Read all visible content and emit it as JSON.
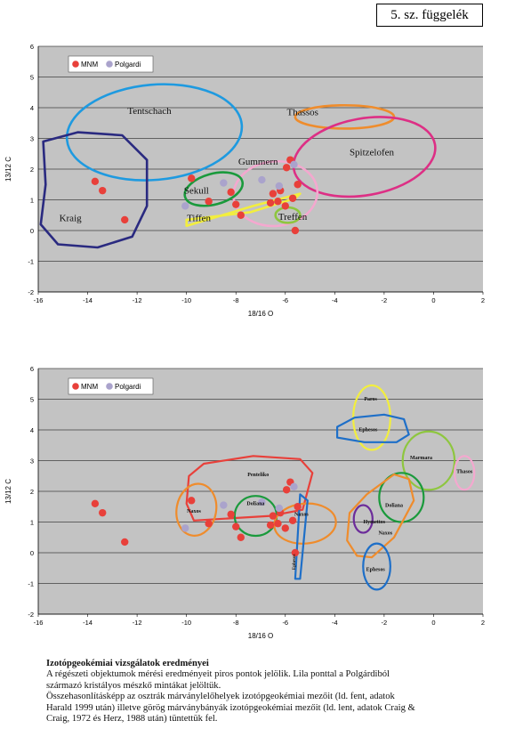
{
  "appendix_label": "5. sz. függelék",
  "caption": {
    "title": "Izotópgeokémiai vizsgálatok eredményei",
    "body": "A régészeti objektumok mérési eredményeit piros pontok jelölik. Lila ponttal a Polgárdiból\nszármazó kristályos mészkő mintákat jelöltük.\nÖsszehasonlításképp az osztrák márványlelőhelyek izotópgeokémiai mezőit (ld. fent, adatok\nHarald 1999 után) illetve görög márványbányák izotópgeokémiai mezőit (ld. lent, adatok Craig &\nCraig, 1972 és Herz, 1988 után) tüntettük fel."
  },
  "colors": {
    "mnm": "#e8403a",
    "polgardi": "#aaa3cc",
    "plot_bg": "#c3c3c3",
    "grid": "#000000"
  },
  "chart_data": [
    {
      "type": "scatter",
      "xlabel": "18/16 O",
      "ylabel": "13/12 C",
      "xlim": [
        -16,
        2
      ],
      "ylim": [
        -2,
        6
      ],
      "xticks": [
        -16,
        -14,
        -12,
        -10,
        -8,
        -6,
        -4,
        -2,
        0,
        2
      ],
      "yticks": [
        -2,
        -1,
        0,
        1,
        2,
        3,
        4,
        5,
        6
      ],
      "grid": "horizontal",
      "legend": {
        "placement": "top-left",
        "entries": [
          "MNM",
          "Polgardi"
        ]
      },
      "series": [
        {
          "name": "MNM",
          "color": "#e8403a",
          "points": [
            [
              -13.7,
              1.6
            ],
            [
              -13.4,
              1.3
            ],
            [
              -12.5,
              0.35
            ],
            [
              -9.8,
              1.7
            ],
            [
              -9.1,
              0.95
            ],
            [
              -8.2,
              1.25
            ],
            [
              -8,
              0.85
            ],
            [
              -7.8,
              0.5
            ],
            [
              -6.6,
              0.9
            ],
            [
              -6.5,
              1.2
            ],
            [
              -6.3,
              0.95
            ],
            [
              -6.2,
              1.3
            ],
            [
              -6,
              0.8
            ],
            [
              -5.95,
              2.05
            ],
            [
              -5.8,
              2.3
            ],
            [
              -5.7,
              1.05
            ],
            [
              -5.5,
              1.5
            ],
            [
              -5.6,
              0
            ]
          ]
        },
        {
          "name": "Polgardi",
          "color": "#aaa3cc",
          "points": [
            [
              -10.05,
              0.8
            ],
            [
              -8.5,
              1.55
            ],
            [
              -6.95,
              1.65
            ],
            [
              -6.25,
              1.45
            ],
            [
              -5.65,
              2.15
            ]
          ]
        }
      ],
      "regions": [
        {
          "label": "Tentschach",
          "color": "#1e9ae0",
          "labelPos": [
            -11.5,
            3.8
          ],
          "labelSize": 11
        },
        {
          "label": "Kraig",
          "color": "#2a2a80",
          "labelPos": [
            -14.7,
            0.3
          ],
          "labelSize": 11
        },
        {
          "label": "Thassos",
          "color": "#ef8c2c",
          "labelPos": [
            -5.3,
            3.75
          ],
          "labelSize": 11
        },
        {
          "label": "Spitzelofen",
          "color": "#dd2f85",
          "labelPos": [
            -2.5,
            2.45
          ],
          "labelSize": 11
        },
        {
          "label": "Gummern",
          "color": "#f4a8cf",
          "labelPos": [
            -7.1,
            2.15
          ],
          "labelSize": 11
        },
        {
          "label": "Sekull",
          "color": "#1a9a3c",
          "labelPos": [
            -9.6,
            1.2
          ],
          "labelSize": 11
        },
        {
          "label": "Tiffen",
          "color": "#f2ee3e",
          "labelPos": [
            -9.5,
            0.3
          ],
          "labelSize": 11
        },
        {
          "label": "Treffen",
          "color": "#8ec63f",
          "labelPos": [
            -5.7,
            0.35
          ],
          "labelSize": 11
        }
      ]
    },
    {
      "type": "scatter",
      "xlabel": "18/16 O",
      "ylabel": "13/12 C",
      "xlim": [
        -16,
        2
      ],
      "ylim": [
        -2,
        6
      ],
      "xticks": [
        -16,
        -14,
        -12,
        -10,
        -8,
        -6,
        -4,
        -2,
        0,
        2
      ],
      "yticks": [
        -2,
        -1,
        0,
        1,
        2,
        3,
        4,
        5,
        6
      ],
      "grid": "horizontal",
      "legend": {
        "placement": "top-left",
        "entries": [
          "MNM",
          "Polgardi"
        ]
      },
      "series": [
        {
          "name": "MNM",
          "color": "#e8403a",
          "points": [
            [
              -13.7,
              1.6
            ],
            [
              -13.4,
              1.3
            ],
            [
              -12.5,
              0.35
            ],
            [
              -9.8,
              1.7
            ],
            [
              -9.1,
              0.95
            ],
            [
              -8.2,
              1.25
            ],
            [
              -8,
              0.85
            ],
            [
              -7.8,
              0.5
            ],
            [
              -6.6,
              0.9
            ],
            [
              -6.5,
              1.2
            ],
            [
              -6.3,
              0.95
            ],
            [
              -6.2,
              1.3
            ],
            [
              -6,
              0.8
            ],
            [
              -5.95,
              2.05
            ],
            [
              -5.8,
              2.3
            ],
            [
              -5.7,
              1.05
            ],
            [
              -5.5,
              1.5
            ],
            [
              -5.6,
              0
            ]
          ]
        },
        {
          "name": "Polgardi",
          "color": "#aaa3cc",
          "points": [
            [
              -10.05,
              0.8
            ],
            [
              -8.5,
              1.55
            ],
            [
              -6.95,
              1.65
            ],
            [
              -6.25,
              1.45
            ],
            [
              -5.65,
              2.15
            ]
          ]
        }
      ],
      "regions": [
        {
          "label": "Paros",
          "color": "#f2ee3e",
          "labelPos": [
            -2.55,
            4.95
          ],
          "labelSize": 6
        },
        {
          "label": "Ephesos",
          "color": "#1e6fc8",
          "labelPos": [
            -2.65,
            3.95
          ],
          "labelSize": 6
        },
        {
          "label": "Penteliko",
          "color": "#e8403a",
          "labelPos": [
            -7.1,
            2.5
          ],
          "labelSize": 6
        },
        {
          "label": "Naxos",
          "color": "#ef8c2c",
          "labelPos": [
            -9.7,
            1.3
          ],
          "labelSize": 6
        },
        {
          "label": "Doliana",
          "color": "#1a9a3c",
          "labelPos": [
            -7.2,
            1.55
          ],
          "labelSize": 6
        },
        {
          "label": "Naxos",
          "color": "#ef8c2c",
          "labelPos": [
            -5.35,
            1.2
          ],
          "labelSize": 6
        },
        {
          "label": "Ephesos",
          "color": "#1e6fc8",
          "labelPos": [
            -5.6,
            -0.3
          ],
          "labelSize": 5,
          "rotate": -90
        },
        {
          "label": "Marmara",
          "color": "#8ec63f",
          "labelPos": [
            -0.5,
            3.05
          ],
          "labelSize": 6
        },
        {
          "label": "Thasos",
          "color": "#f4a8cf",
          "labelPos": [
            1.25,
            2.6
          ],
          "labelSize": 6
        },
        {
          "label": "Doliana",
          "color": "#1a9a3c",
          "labelPos": [
            -1.6,
            1.5
          ],
          "labelSize": 6
        },
        {
          "label": "Hymettos",
          "color": "#6c2c9a",
          "labelPos": [
            -2.4,
            0.95
          ],
          "labelSize": 6
        },
        {
          "label": "Naxos",
          "color": "#ef8c2c",
          "labelPos": [
            -1.95,
            0.6
          ],
          "labelSize": 6
        },
        {
          "label": "Ephesos",
          "color": "#1e6fc8",
          "labelPos": [
            -2.35,
            -0.6
          ],
          "labelSize": 6
        }
      ]
    }
  ]
}
